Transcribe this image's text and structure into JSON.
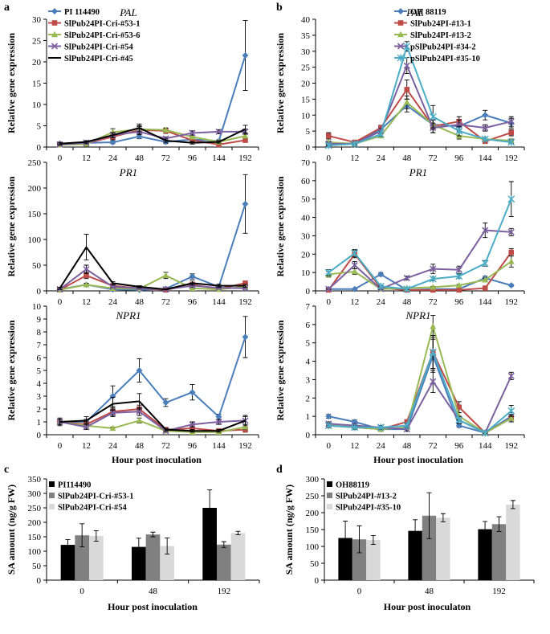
{
  "colors": {
    "blue": "#4a7ebb",
    "red": "#be4b48",
    "green": "#98b954",
    "purple": "#7d60a0",
    "black": "#000000",
    "cyan": "#4bacc6",
    "bar_black": "#000000",
    "bar_gray": "#808080",
    "bar_light": "#d9d9d9"
  },
  "chart_data": [
    {
      "panel": "a",
      "type": "line",
      "title": "PAL",
      "ylabel": "Relative gene expression",
      "xlabel": "",
      "ylim": [
        0,
        30
      ],
      "yticks": [
        0,
        5,
        10,
        15,
        20,
        25,
        30
      ],
      "x": [
        "0",
        "12",
        "24",
        "48",
        "72",
        "96",
        "144",
        "192"
      ],
      "series": [
        {
          "name": "PI 114490",
          "color": "blue",
          "marker": "diamond",
          "values": [
            0.8,
            1.0,
            1.1,
            2.5,
            1.2,
            1.8,
            1.4,
            21.5
          ],
          "errors": [
            0.3,
            0.3,
            0.3,
            0.5,
            0.4,
            0.5,
            0.3,
            8.2
          ]
        },
        {
          "name": "SlPub24PI-Cri-#53-1",
          "color": "red",
          "marker": "square",
          "values": [
            0.6,
            0.9,
            2.4,
            4.0,
            3.8,
            1.6,
            0.6,
            1.6
          ],
          "errors": [
            0.2,
            0.3,
            0.7,
            0.8,
            0.6,
            0.4,
            0.2,
            0.4
          ]
        },
        {
          "name": "SlPub24PI-Cri-#53-6",
          "color": "green",
          "marker": "triangle",
          "values": [
            0.5,
            0.7,
            3.5,
            4.2,
            4.0,
            2.4,
            1.2,
            2.6
          ],
          "errors": [
            0.2,
            0.3,
            0.8,
            0.8,
            0.5,
            0.4,
            0.3,
            0.5
          ]
        },
        {
          "name": "SlPub24PI-Cri-#54",
          "color": "purple",
          "marker": "x",
          "values": [
            0.6,
            1.0,
            2.8,
            3.6,
            2.0,
            3.3,
            3.6,
            3.6
          ],
          "errors": [
            0.2,
            0.3,
            0.6,
            0.7,
            0.4,
            0.5,
            0.5,
            0.6
          ]
        },
        {
          "name": "SlPub24PI-Cri-#45",
          "color": "black",
          "marker": "none",
          "values": [
            0.8,
            1.2,
            2.8,
            4.5,
            1.5,
            1.0,
            1.2,
            4.2
          ],
          "errors": [
            0.3,
            0.3,
            0.6,
            0.9,
            0.4,
            0.3,
            0.3,
            0.9
          ]
        }
      ]
    },
    {
      "panel": "",
      "type": "line",
      "title": "PR1",
      "ylabel": "Relative gene expression",
      "xlabel": "",
      "ylim": [
        0,
        250
      ],
      "yticks": [
        0,
        50,
        100,
        150,
        200,
        250
      ],
      "x": [
        "0",
        "12",
        "24",
        "48",
        "72",
        "96",
        "144",
        "192"
      ],
      "series": [
        {
          "name": "PI 114490",
          "color": "blue",
          "marker": "diamond",
          "values": [
            3,
            12,
            3,
            2,
            4,
            28,
            8,
            169
          ],
          "errors": [
            1,
            3,
            1,
            1,
            1,
            5,
            2,
            57
          ]
        },
        {
          "name": "SlPub24PI-Cri-#53-1",
          "color": "red",
          "marker": "square",
          "values": [
            2,
            30,
            10,
            5,
            2,
            12,
            4,
            15
          ],
          "errors": [
            1,
            6,
            3,
            2,
            1,
            3,
            1,
            4
          ]
        },
        {
          "name": "SlPub24PI-Cri-#53-6",
          "color": "green",
          "marker": "triangle",
          "values": [
            2,
            12,
            5,
            4,
            30,
            5,
            3,
            8
          ],
          "errors": [
            1,
            3,
            2,
            1,
            6,
            2,
            1,
            2
          ]
        },
        {
          "name": "SlPub24PI-Cri-#54",
          "color": "purple",
          "marker": "x",
          "values": [
            3,
            42,
            8,
            5,
            3,
            10,
            6,
            5
          ],
          "errors": [
            1,
            8,
            2,
            2,
            1,
            3,
            2,
            2
          ]
        },
        {
          "name": "SlPub24PI-Cri-#45",
          "color": "black",
          "marker": "none",
          "values": [
            5,
            85,
            15,
            8,
            3,
            15,
            10,
            10
          ],
          "errors": [
            2,
            25,
            3,
            2,
            1,
            4,
            3,
            3
          ]
        }
      ]
    },
    {
      "panel": "",
      "type": "line",
      "title": "NPR1",
      "ylabel": "Relative gene expression",
      "xlabel": "Hour post inoculation",
      "ylim": [
        0,
        10
      ],
      "yticks": [
        0,
        1,
        2,
        3,
        4,
        5,
        6,
        7,
        8,
        9,
        10
      ],
      "x": [
        "0",
        "12",
        "24",
        "48",
        "72",
        "96",
        "144",
        "192"
      ],
      "series": [
        {
          "name": "PI 114490",
          "color": "blue",
          "marker": "diamond",
          "values": [
            1.0,
            1.0,
            3.0,
            5.0,
            2.5,
            3.3,
            1.4,
            7.6
          ],
          "errors": [
            0.2,
            0.2,
            0.8,
            0.9,
            0.3,
            0.6,
            0.2,
            1.6
          ]
        },
        {
          "name": "SlPub24PI-Cri-#53-1",
          "color": "red",
          "marker": "square",
          "values": [
            1.0,
            0.8,
            1.8,
            2.0,
            0.4,
            0.5,
            0.3,
            0.4
          ],
          "errors": [
            0.2,
            0.2,
            0.3,
            0.3,
            0.1,
            0.2,
            0.1,
            0.2
          ]
        },
        {
          "name": "SlPub24PI-Cri-#53-6",
          "color": "green",
          "marker": "triangle",
          "values": [
            1.0,
            0.7,
            0.5,
            1.1,
            0.3,
            0.2,
            0.2,
            0.6
          ],
          "errors": [
            0.2,
            0.2,
            0.1,
            0.2,
            0.1,
            0.1,
            0.1,
            0.2
          ]
        },
        {
          "name": "SlPub24PI-Cri-#54",
          "color": "purple",
          "marker": "x",
          "values": [
            1.0,
            0.6,
            1.7,
            1.8,
            0.3,
            0.8,
            1.0,
            1.1
          ],
          "errors": [
            0.2,
            0.2,
            0.3,
            0.3,
            0.1,
            0.2,
            0.2,
            0.4
          ]
        },
        {
          "name": "SlPub24PI-Cri-#45",
          "color": "black",
          "marker": "none",
          "values": [
            1.0,
            1.1,
            2.4,
            2.6,
            0.4,
            0.3,
            0.3,
            1.1
          ],
          "errors": [
            0.3,
            0.3,
            0.5,
            0.6,
            0.1,
            0.1,
            0.1,
            0.3
          ]
        }
      ]
    },
    {
      "panel": "b",
      "type": "line",
      "title": "PAL",
      "ylabel": "Relative gene expression",
      "xlabel": "",
      "ylim": [
        0,
        40
      ],
      "yticks": [
        0,
        5,
        10,
        15,
        20,
        25,
        30,
        35,
        40
      ],
      "x": [
        "0",
        "12",
        "24",
        "48",
        "72",
        "96",
        "144",
        "192"
      ],
      "series": [
        {
          "name": "OH 88119",
          "color": "blue",
          "marker": "diamond",
          "values": [
            1.0,
            1.2,
            5.5,
            13.0,
            7.0,
            6.5,
            10.0,
            7.5
          ],
          "errors": [
            0.3,
            0.3,
            0.8,
            2.0,
            1.5,
            1.5,
            1.5,
            1.5
          ]
        },
        {
          "name": "SlPub24PI-#13-1",
          "color": "red",
          "marker": "square",
          "values": [
            3.5,
            1.5,
            6.0,
            18.0,
            6.5,
            8.0,
            1.8,
            4.5
          ],
          "errors": [
            1.0,
            0.3,
            0.8,
            3.0,
            2.0,
            1.5,
            0.4,
            1.0
          ]
        },
        {
          "name": "SlPub24PI-#13-2",
          "color": "green",
          "marker": "triangle",
          "values": [
            1.5,
            1.0,
            3.5,
            14.0,
            7.0,
            3.5,
            2.5,
            2.0
          ],
          "errors": [
            0.4,
            0.3,
            0.6,
            2.0,
            1.5,
            1.0,
            0.5,
            0.5
          ]
        },
        {
          "name": "pSlPub24PI-#34-2",
          "color": "purple",
          "marker": "x",
          "values": [
            1.0,
            1.0,
            5.0,
            25.5,
            6.0,
            7.0,
            6.0,
            8.0
          ],
          "errors": [
            0.3,
            0.3,
            0.8,
            2.5,
            1.5,
            1.5,
            1.0,
            1.5
          ]
        },
        {
          "name": "pSlPub24PI-#35-10",
          "color": "cyan",
          "marker": "star",
          "values": [
            0.5,
            1.0,
            4.0,
            31.5,
            9.5,
            5.0,
            2.5,
            1.5
          ],
          "errors": [
            0.2,
            0.3,
            0.6,
            1.5,
            3.5,
            1.5,
            0.5,
            0.4
          ]
        }
      ]
    },
    {
      "panel": "",
      "type": "line",
      "title": "PR1",
      "ylabel": "Relative gene expression",
      "xlabel": "",
      "ylim": [
        0,
        70
      ],
      "yticks": [
        0,
        10,
        20,
        30,
        40,
        50,
        60,
        70
      ],
      "x": [
        "0",
        "12",
        "24",
        "48",
        "72",
        "96",
        "144",
        "192"
      ],
      "series": [
        {
          "name": "OH 88119",
          "color": "blue",
          "marker": "diamond",
          "values": [
            1.0,
            1.0,
            9.0,
            0.5,
            1.0,
            1.0,
            7.0,
            3.0
          ],
          "errors": [
            0.3,
            0.3,
            1.0,
            0.2,
            0.3,
            0.3,
            1.0,
            0.5
          ]
        },
        {
          "name": "SlPub24PI-#13-1",
          "color": "red",
          "marker": "square",
          "values": [
            0.5,
            20.0,
            1.5,
            0.5,
            0.5,
            0.5,
            1.5,
            21.0
          ],
          "errors": [
            0.2,
            2.0,
            0.5,
            0.2,
            0.2,
            0.2,
            0.4,
            2.0
          ]
        },
        {
          "name": "SlPub24PI-#13-2",
          "color": "green",
          "marker": "triangle",
          "values": [
            9.0,
            10.5,
            1.0,
            1.5,
            2.0,
            3.0,
            6.0,
            16.0
          ],
          "errors": [
            1.5,
            1.5,
            0.3,
            0.4,
            0.5,
            0.5,
            1.0,
            3.0
          ]
        },
        {
          "name": "pSlPub24PI-#34-2",
          "color": "purple",
          "marker": "x",
          "values": [
            1.0,
            14.0,
            1.0,
            7.0,
            12.0,
            11.5,
            33.0,
            32.0
          ],
          "errors": [
            0.3,
            2.0,
            0.3,
            1.0,
            2.5,
            2.0,
            4.0,
            2.0
          ]
        },
        {
          "name": "pSlPub24PI-#35-10",
          "color": "cyan",
          "marker": "star",
          "values": [
            10.0,
            20.5,
            2.5,
            1.0,
            6.5,
            8.0,
            15.0,
            50.0
          ],
          "errors": [
            1.5,
            2.0,
            0.5,
            0.3,
            1.0,
            1.0,
            1.5,
            9.5
          ]
        }
      ]
    },
    {
      "panel": "",
      "type": "line",
      "title": "NPR1",
      "ylabel": "Relative gene expression",
      "xlabel": "Hour post inoculation",
      "ylim": [
        0,
        7
      ],
      "yticks": [
        0,
        1,
        2,
        3,
        4,
        5,
        6,
        7
      ],
      "x": [
        "0",
        "12",
        "24",
        "48",
        "72",
        "96",
        "144",
        "192"
      ],
      "series": [
        {
          "name": "OH 88119",
          "color": "blue",
          "marker": "diamond",
          "values": [
            1.0,
            0.7,
            0.3,
            0.3,
            4.3,
            0.5,
            0.1,
            1.0
          ],
          "errors": [
            0.1,
            0.1,
            0.1,
            0.1,
            0.9,
            0.1,
            0.05,
            0.2
          ]
        },
        {
          "name": "SlPub24PI-#13-1",
          "color": "red",
          "marker": "square",
          "values": [
            0.5,
            0.4,
            0.3,
            0.7,
            4.5,
            1.5,
            0.1,
            0.9
          ],
          "errors": [
            0.1,
            0.1,
            0.1,
            0.1,
            0.9,
            0.3,
            0.05,
            0.2
          ]
        },
        {
          "name": "SlPub24PI-#13-2",
          "color": "green",
          "marker": "triangle",
          "values": [
            0.6,
            0.4,
            0.3,
            0.4,
            5.9,
            1.0,
            0.1,
            0.9
          ],
          "errors": [
            0.1,
            0.1,
            0.1,
            0.1,
            0.6,
            0.2,
            0.05,
            0.2
          ]
        },
        {
          "name": "pSlPub24PI-#34-2",
          "color": "purple",
          "marker": "x",
          "values": [
            0.6,
            0.5,
            0.4,
            0.3,
            2.9,
            0.8,
            0.1,
            3.2
          ],
          "errors": [
            0.1,
            0.1,
            0.1,
            0.1,
            0.6,
            0.2,
            0.05,
            0.2
          ]
        },
        {
          "name": "pSlPub24PI-#35-10",
          "color": "cyan",
          "marker": "star",
          "values": [
            0.5,
            0.4,
            0.4,
            0.5,
            4.5,
            0.8,
            0.1,
            1.3
          ],
          "errors": [
            0.1,
            0.1,
            0.1,
            0.1,
            0.9,
            0.2,
            0.05,
            0.3
          ]
        }
      ]
    },
    {
      "panel": "c",
      "type": "bar",
      "title": "",
      "ylabel": "SA amount (ng/g FW)",
      "xlabel": "Hour post inoculation",
      "ylim": [
        0,
        350
      ],
      "yticks": [
        0,
        50,
        100,
        150,
        200,
        250,
        300,
        350
      ],
      "categories": [
        "0",
        "48",
        "192"
      ],
      "series": [
        {
          "name": "PI114490",
          "color": "bar_black",
          "values": [
            122,
            115,
            250
          ],
          "errors": [
            18,
            30,
            62
          ]
        },
        {
          "name": "SlPub24PI-Cri-#53-1",
          "color": "bar_gray",
          "values": [
            155,
            158,
            123
          ],
          "errors": [
            40,
            8,
            10
          ]
        },
        {
          "name": "SlPub24PI-Cri-#54",
          "color": "bar_light",
          "values": [
            153,
            118,
            163
          ],
          "errors": [
            18,
            28,
            6
          ]
        }
      ]
    },
    {
      "panel": "d",
      "type": "bar",
      "title": "",
      "ylabel": "SA amount (ng/g FW)",
      "xlabel": "Hour post inoculaton",
      "ylim": [
        0,
        300
      ],
      "yticks": [
        0,
        50,
        100,
        150,
        200,
        250,
        300
      ],
      "categories": [
        "0",
        "48",
        "192"
      ],
      "series": [
        {
          "name": "OH88119",
          "color": "bar_black",
          "values": [
            125,
            146,
            151
          ],
          "errors": [
            50,
            33,
            23
          ]
        },
        {
          "name": "SlPub24PI-#13-2",
          "color": "bar_gray",
          "values": [
            121,
            191,
            166
          ],
          "errors": [
            40,
            68,
            22
          ]
        },
        {
          "name": "SlPub24PI-#35-10",
          "color": "bar_light",
          "values": [
            119,
            185,
            224
          ],
          "errors": [
            13,
            12,
            12
          ]
        }
      ]
    }
  ]
}
